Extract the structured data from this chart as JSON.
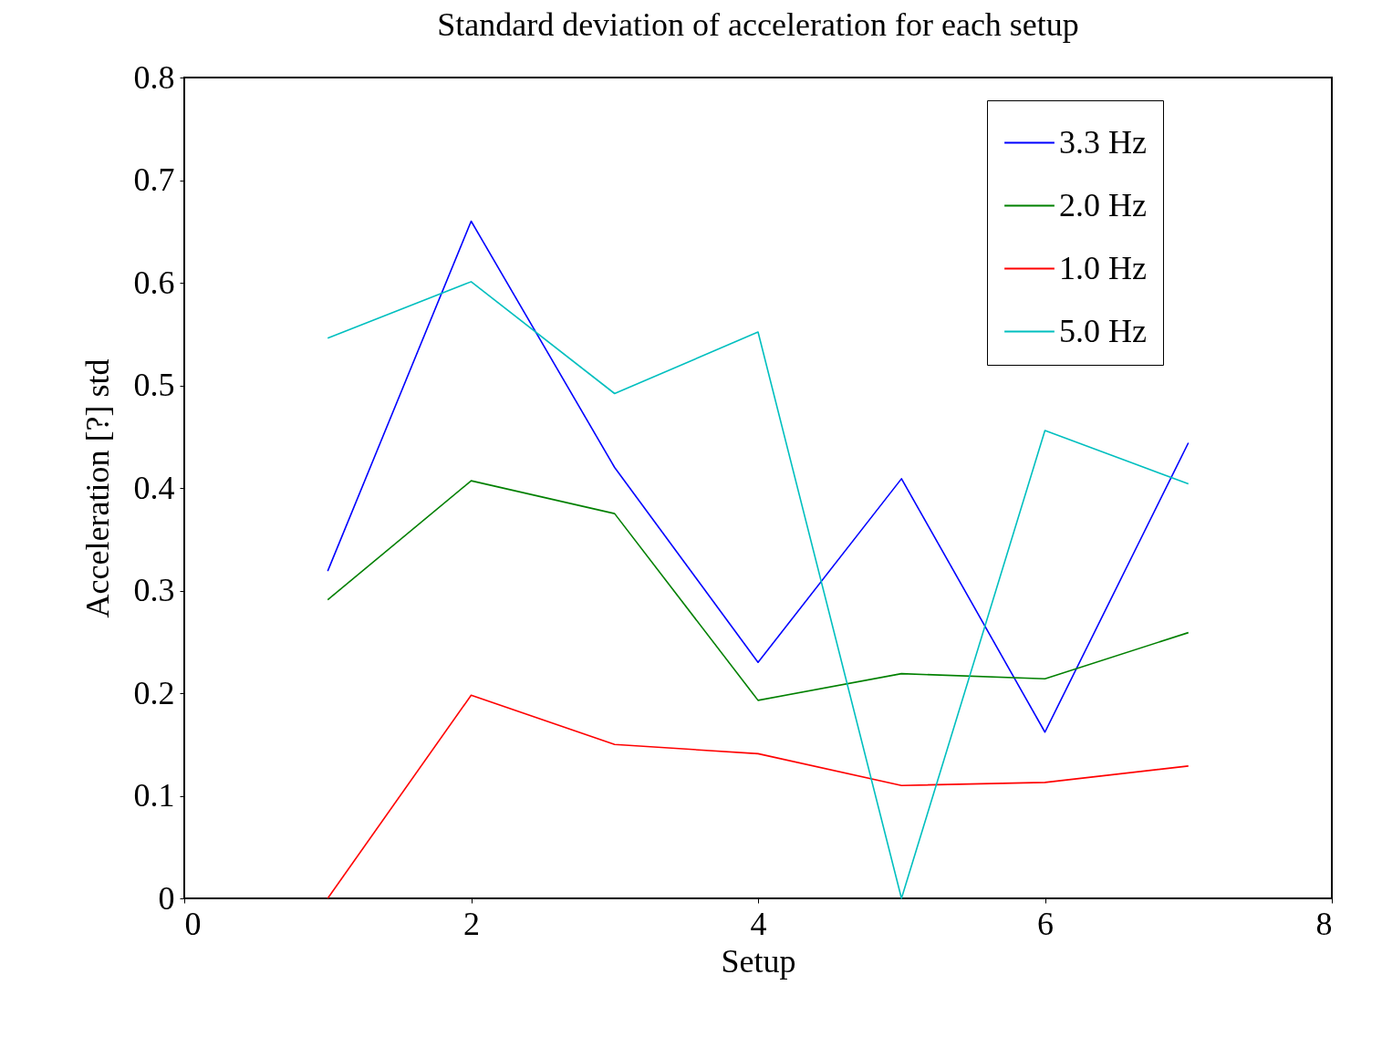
{
  "chart_data": {
    "type": "line",
    "title": "Standard deviation of acceleration for each setup",
    "xlabel": "Setup",
    "ylabel": "Acceleration [?] std",
    "x": [
      1,
      2,
      3,
      4,
      5,
      6,
      7
    ],
    "series": [
      {
        "name": "3.3 Hz",
        "color": "#0000ff",
        "values": [
          0.319,
          0.66,
          0.42,
          0.23,
          0.409,
          0.162,
          0.444
        ]
      },
      {
        "name": "2.0 Hz",
        "color": "#008000",
        "values": [
          0.291,
          0.407,
          0.375,
          0.193,
          0.219,
          0.214,
          0.259
        ]
      },
      {
        "name": "1.0 Hz",
        "color": "#ff0000",
        "values": [
          0.0,
          0.198,
          0.15,
          0.141,
          0.11,
          0.113,
          0.129
        ]
      },
      {
        "name": "5.0 Hz",
        "color": "#00bfbf",
        "values": [
          0.546,
          0.601,
          0.492,
          0.552,
          0.0,
          0.456,
          0.404
        ]
      }
    ],
    "xlim": [
      0,
      8
    ],
    "xticks": [
      0,
      2,
      4,
      6,
      8
    ],
    "ylim": [
      0,
      0.8
    ],
    "yticks": [
      0,
      0.1,
      0.2,
      0.3,
      0.4,
      0.5,
      0.6,
      0.7,
      0.8
    ],
    "grid": false,
    "legend": "top right",
    "marker": "none",
    "line_style": "solid"
  }
}
